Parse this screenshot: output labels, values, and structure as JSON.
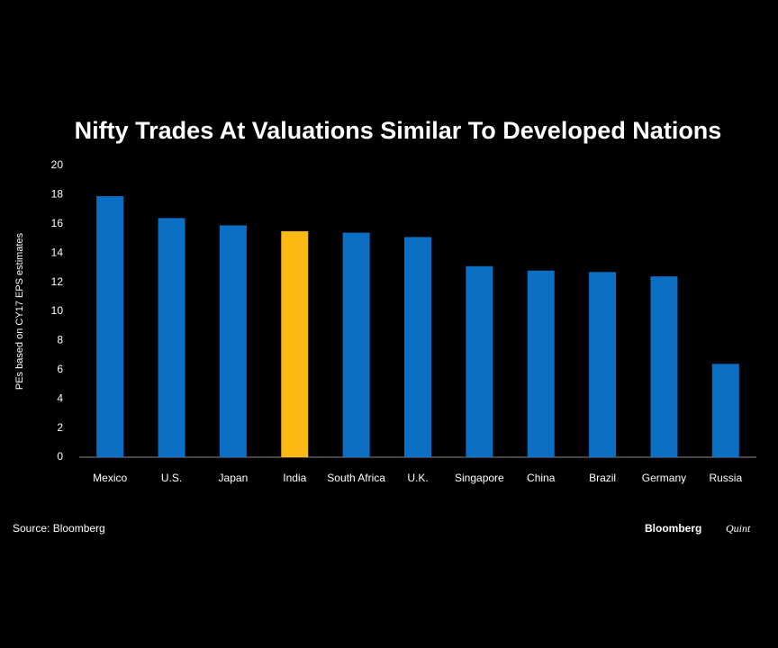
{
  "chart_data": {
    "type": "bar",
    "title": "Nifty Trades At Valuations Similar To Developed Nations",
    "y_label": "PEs based on CY17 EPS estimates",
    "categories": [
      "Mexico",
      "U.S.",
      "Japan",
      "India",
      "South Africa",
      "U.K.",
      "Singapore",
      "China",
      "Brazil",
      "Germany",
      "Russia"
    ],
    "values": [
      17.9,
      16.4,
      15.9,
      15.5,
      15.4,
      15.1,
      13.1,
      12.8,
      12.7,
      12.4,
      6.4
    ],
    "colors": [
      "#0b6fc4",
      "#0b6fc4",
      "#0b6fc4",
      "#fdb913",
      "#0b6fc4",
      "#0b6fc4",
      "#0b6fc4",
      "#0b6fc4",
      "#0b6fc4",
      "#0b6fc4",
      "#0b6fc4"
    ],
    "ylim": [
      0,
      20
    ],
    "yticks": [
      0,
      2,
      4,
      6,
      8,
      10,
      12,
      14,
      16,
      18,
      20
    ],
    "grid": false,
    "source": "Source: Bloomberg",
    "branding": [
      "Bloomberg",
      "Quint"
    ]
  }
}
